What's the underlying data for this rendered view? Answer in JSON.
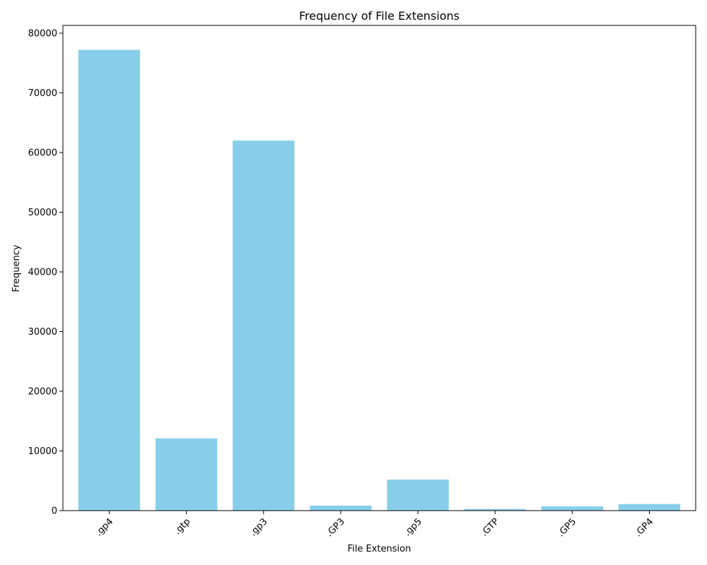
{
  "chart_data": {
    "type": "bar",
    "title": "Frequency of File Extensions",
    "xlabel": "File Extension",
    "ylabel": "Frequency",
    "categories": [
      ".gp4",
      ".gtp",
      ".gp3",
      ".GP3",
      ".gp5",
      ".GTP",
      ".GP5",
      ".GP4"
    ],
    "values": [
      77200,
      12100,
      62000,
      850,
      5200,
      280,
      700,
      1100
    ],
    "ylim": [
      0,
      81300
    ],
    "yticks": [
      0,
      10000,
      20000,
      30000,
      40000,
      50000,
      60000,
      70000,
      80000
    ],
    "ytick_labels": [
      "0",
      "10000",
      "20000",
      "30000",
      "40000",
      "50000",
      "60000",
      "70000",
      "80000"
    ],
    "bar_color": "#87ceeb",
    "grid": false,
    "x_tick_rotation": "45 degrees"
  }
}
